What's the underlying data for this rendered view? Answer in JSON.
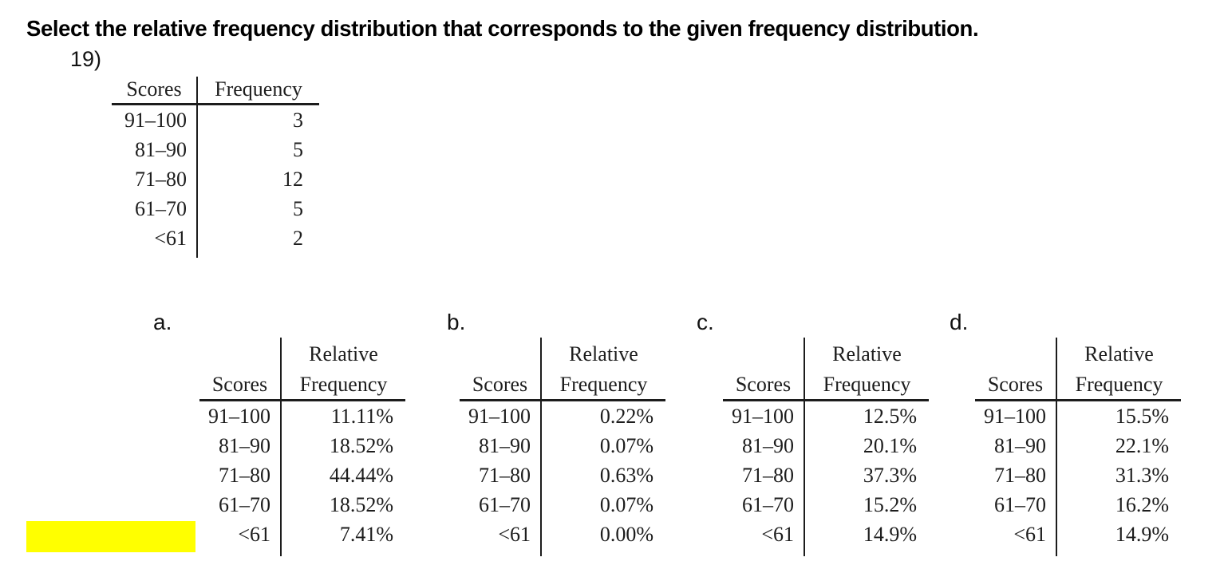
{
  "title": "Select the relative frequency distribution that corresponds to the given frequency distribution.",
  "question_number": "19)",
  "frequency_table": {
    "col_headers": [
      "Scores",
      "Frequency"
    ],
    "rows": [
      [
        "91–100",
        "3"
      ],
      [
        "81–90",
        "5"
      ],
      [
        "71–80",
        "12"
      ],
      [
        "61–70",
        "5"
      ],
      [
        "<61",
        "2"
      ]
    ]
  },
  "options": [
    {
      "label": "a.",
      "header_top": "Relative",
      "col_headers": [
        "Scores",
        "Frequency"
      ],
      "rows": [
        [
          "91–100",
          "11.11%"
        ],
        [
          "81–90",
          "18.52%"
        ],
        [
          "71–80",
          "44.44%"
        ],
        [
          "61–70",
          "18.52%"
        ],
        [
          "<61",
          "7.41%"
        ]
      ]
    },
    {
      "label": "b.",
      "header_top": "Relative",
      "col_headers": [
        "Scores",
        "Frequency"
      ],
      "rows": [
        [
          "91–100",
          "0.22%"
        ],
        [
          "81–90",
          "0.07%"
        ],
        [
          "71–80",
          "0.63%"
        ],
        [
          "61–70",
          "0.07%"
        ],
        [
          "<61",
          "0.00%"
        ]
      ]
    },
    {
      "label": "c.",
      "header_top": "Relative",
      "col_headers": [
        "Scores",
        "Frequency"
      ],
      "rows": [
        [
          "91–100",
          "12.5%"
        ],
        [
          "81–90",
          "20.1%"
        ],
        [
          "71–80",
          "37.3%"
        ],
        [
          "61–70",
          "15.2%"
        ],
        [
          "<61",
          "14.9%"
        ]
      ]
    },
    {
      "label": "d.",
      "header_top": "Relative",
      "col_headers": [
        "Scores",
        "Frequency"
      ],
      "rows": [
        [
          "91–100",
          "15.5%"
        ],
        [
          "81–90",
          "22.1%"
        ],
        [
          "71–80",
          "31.3%"
        ],
        [
          "61–70",
          "16.2%"
        ],
        [
          "<61",
          "14.9%"
        ]
      ]
    }
  ],
  "highlight": {
    "color": "#ffff00"
  }
}
